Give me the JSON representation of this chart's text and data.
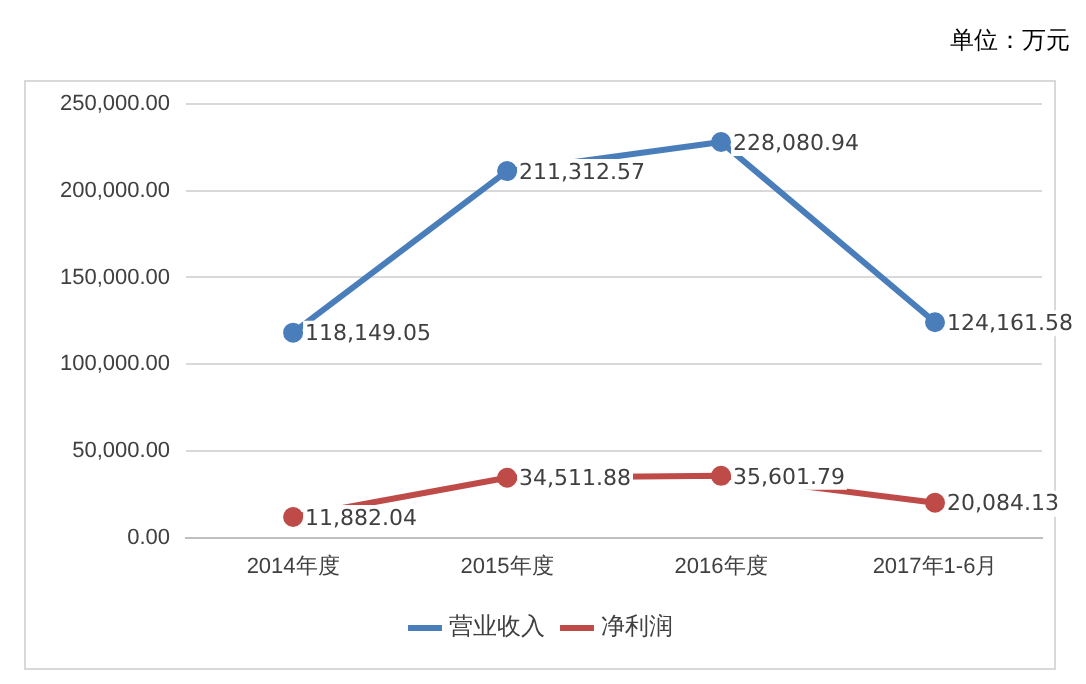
{
  "chart_data": {
    "type": "line",
    "annotations": [
      "单位：万元"
    ],
    "categories": [
      "2014年度",
      "2015年度",
      "2016年度",
      "2017年1-6月"
    ],
    "series": [
      {
        "name": "营业收入",
        "color": "#4a7ebb",
        "values": [
          118149.05,
          211312.57,
          228080.94,
          124161.58
        ],
        "value_labels": [
          "118,149.05",
          "211,312.57",
          "228,080.94",
          "124,161.58"
        ]
      },
      {
        "name": "净利润",
        "color": "#be4b48",
        "values": [
          11882.04,
          34511.88,
          35601.79,
          20084.13
        ],
        "value_labels": [
          "11,882.04",
          "34,511.88",
          "35,601.79",
          "20,084.13"
        ]
      }
    ],
    "ylim": [
      0,
      250000
    ],
    "yticks": [
      {
        "value": 0,
        "label": "0.00"
      },
      {
        "value": 50000,
        "label": "50,000.00"
      },
      {
        "value": 100000,
        "label": "100,000.00"
      },
      {
        "value": 150000,
        "label": "150,000.00"
      },
      {
        "value": 200000,
        "label": "200,000.00"
      },
      {
        "value": 250000,
        "label": "250,000.00"
      }
    ],
    "grid": "y",
    "legend": "bottom",
    "marker": "circle",
    "line_style": "solid"
  }
}
